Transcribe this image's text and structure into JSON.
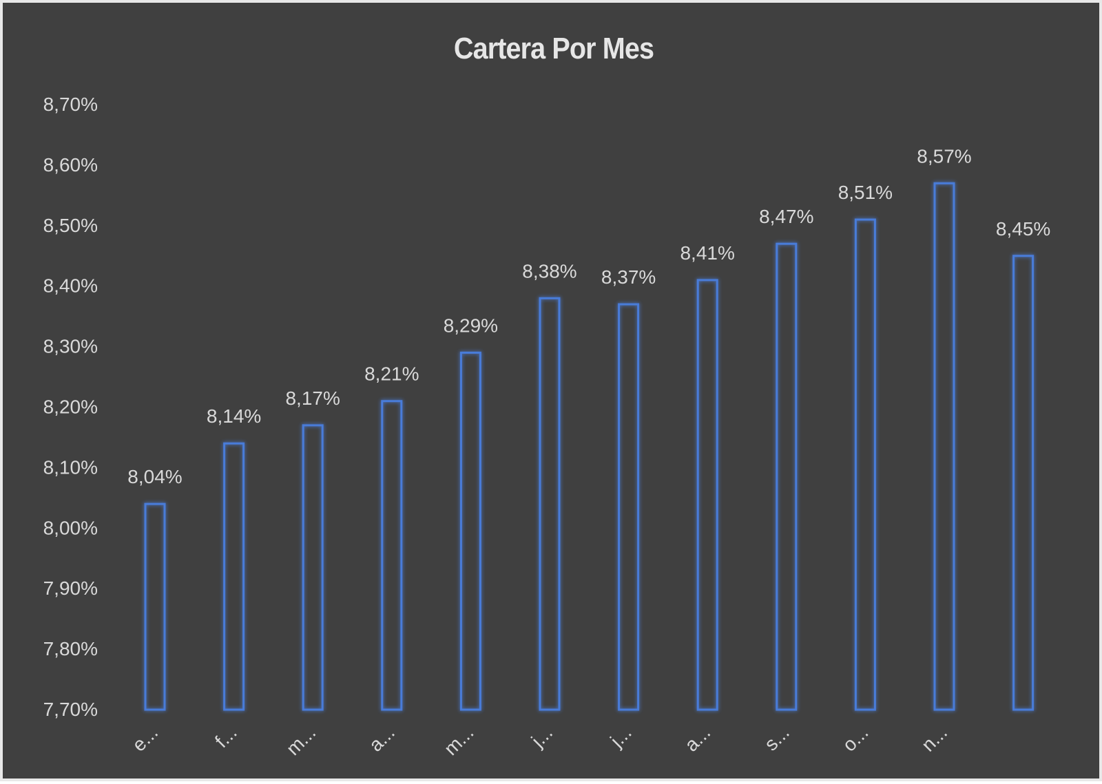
{
  "chart_data": {
    "type": "bar",
    "title": "Cartera Por Mes",
    "categories": [
      "e...",
      "f...",
      "m...",
      "a...",
      "m...",
      "j...",
      "j...",
      "a...",
      "s...",
      "o...",
      "n...",
      ""
    ],
    "values": [
      8.04,
      8.14,
      8.17,
      8.21,
      8.29,
      8.38,
      8.37,
      8.41,
      8.47,
      8.51,
      8.57,
      8.45
    ],
    "data_labels": [
      "8,04%",
      "8,14%",
      "8,17%",
      "8,21%",
      "8,29%",
      "8,38%",
      "8,37%",
      "8,41%",
      "8,47%",
      "8,51%",
      "8,57%",
      "8,45%"
    ],
    "ylim": [
      7.7,
      8.7
    ],
    "y_ticks": [
      7.7,
      7.8,
      7.9,
      8.0,
      8.1,
      8.2,
      8.3,
      8.4,
      8.5,
      8.6,
      8.7
    ],
    "y_tick_labels": [
      "7,70%",
      "7,80%",
      "7,90%",
      "8,00%",
      "8,10%",
      "8,20%",
      "8,30%",
      "8,40%",
      "8,50%",
      "8,60%",
      "8,70%"
    ],
    "xlabel": "",
    "ylabel": "",
    "grid": false,
    "legend": "none",
    "colors": {
      "background": "#404040",
      "bar_outline": "#4a7bd9",
      "text": "#d9d9d9"
    }
  }
}
